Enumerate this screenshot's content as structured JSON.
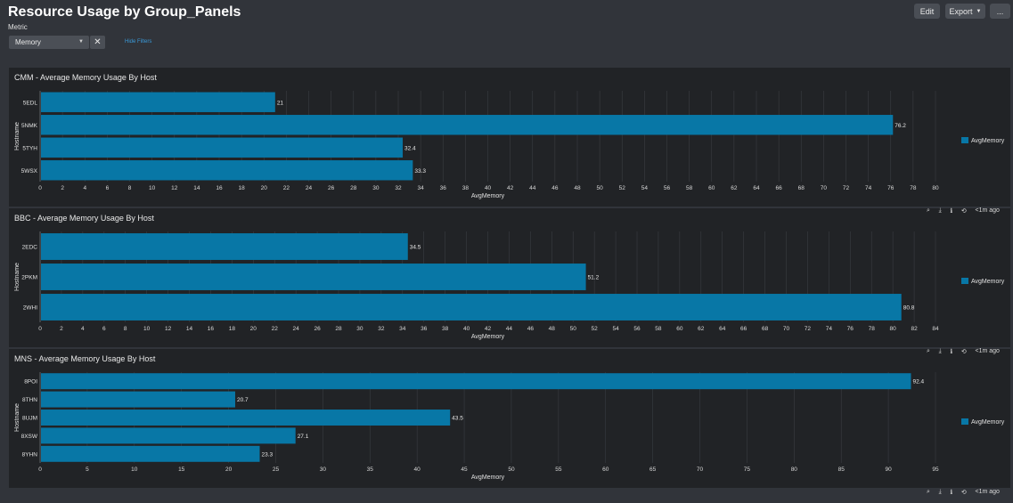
{
  "header": {
    "title": "Resource Usage by Group_Panels",
    "edit_label": "Edit",
    "export_label": "Export",
    "more_label": "..."
  },
  "filters": {
    "metric_label": "Metric",
    "metric_value": "Memory",
    "clear_label": "✕",
    "hide_filters_label": "Hide Filters"
  },
  "panels": [
    {
      "title": "CMM - Average Memory Usage By Host",
      "time_label": "<1m ago",
      "chart_data": {
        "type": "bar",
        "orientation": "horizontal",
        "categories": [
          "5EDL",
          "5NMK",
          "5TYH",
          "5WSX"
        ],
        "series": [
          {
            "name": "AvgMemory",
            "values": [
              21,
              76.2,
              32.4,
              33.3
            ]
          }
        ],
        "value_labels": [
          "21",
          "76.2",
          "32.4",
          "33.3"
        ],
        "xlim": [
          0,
          80
        ],
        "xstep": 2,
        "xlabel": "AvgMemory",
        "ylabel": "Hostname",
        "legend": "right",
        "color": "#0877a6"
      }
    },
    {
      "title": "BBC - Average Memory Usage By Host",
      "time_label": "<1m ago",
      "chart_data": {
        "type": "bar",
        "orientation": "horizontal",
        "categories": [
          "2EDC",
          "2PKM",
          "2WHI"
        ],
        "series": [
          {
            "name": "AvgMemory",
            "values": [
              34.5,
              51.2,
              80.8
            ]
          }
        ],
        "value_labels": [
          "34.5",
          "51.2",
          "80.8"
        ],
        "xlim": [
          0,
          84
        ],
        "xstep": 2,
        "xlabel": "AvgMemory",
        "ylabel": "Hostname",
        "legend": "right",
        "color": "#0877a6"
      }
    },
    {
      "title": "MNS - Average Memory Usage By Host",
      "time_label": "<1m ago",
      "chart_data": {
        "type": "bar",
        "orientation": "horizontal",
        "categories": [
          "8POI",
          "8THN",
          "8UJM",
          "8XSW",
          "8YHN"
        ],
        "series": [
          {
            "name": "AvgMemory",
            "values": [
              92.4,
              20.7,
              43.5,
              27.1,
              23.3
            ]
          }
        ],
        "value_labels": [
          "92.4",
          "20.7",
          "43.5",
          "27.1",
          "23.3"
        ],
        "xlim": [
          0,
          95
        ],
        "xstep": 5,
        "xlabel": "AvgMemory",
        "ylabel": "Hostname",
        "legend": "right",
        "color": "#0877a6"
      }
    }
  ]
}
